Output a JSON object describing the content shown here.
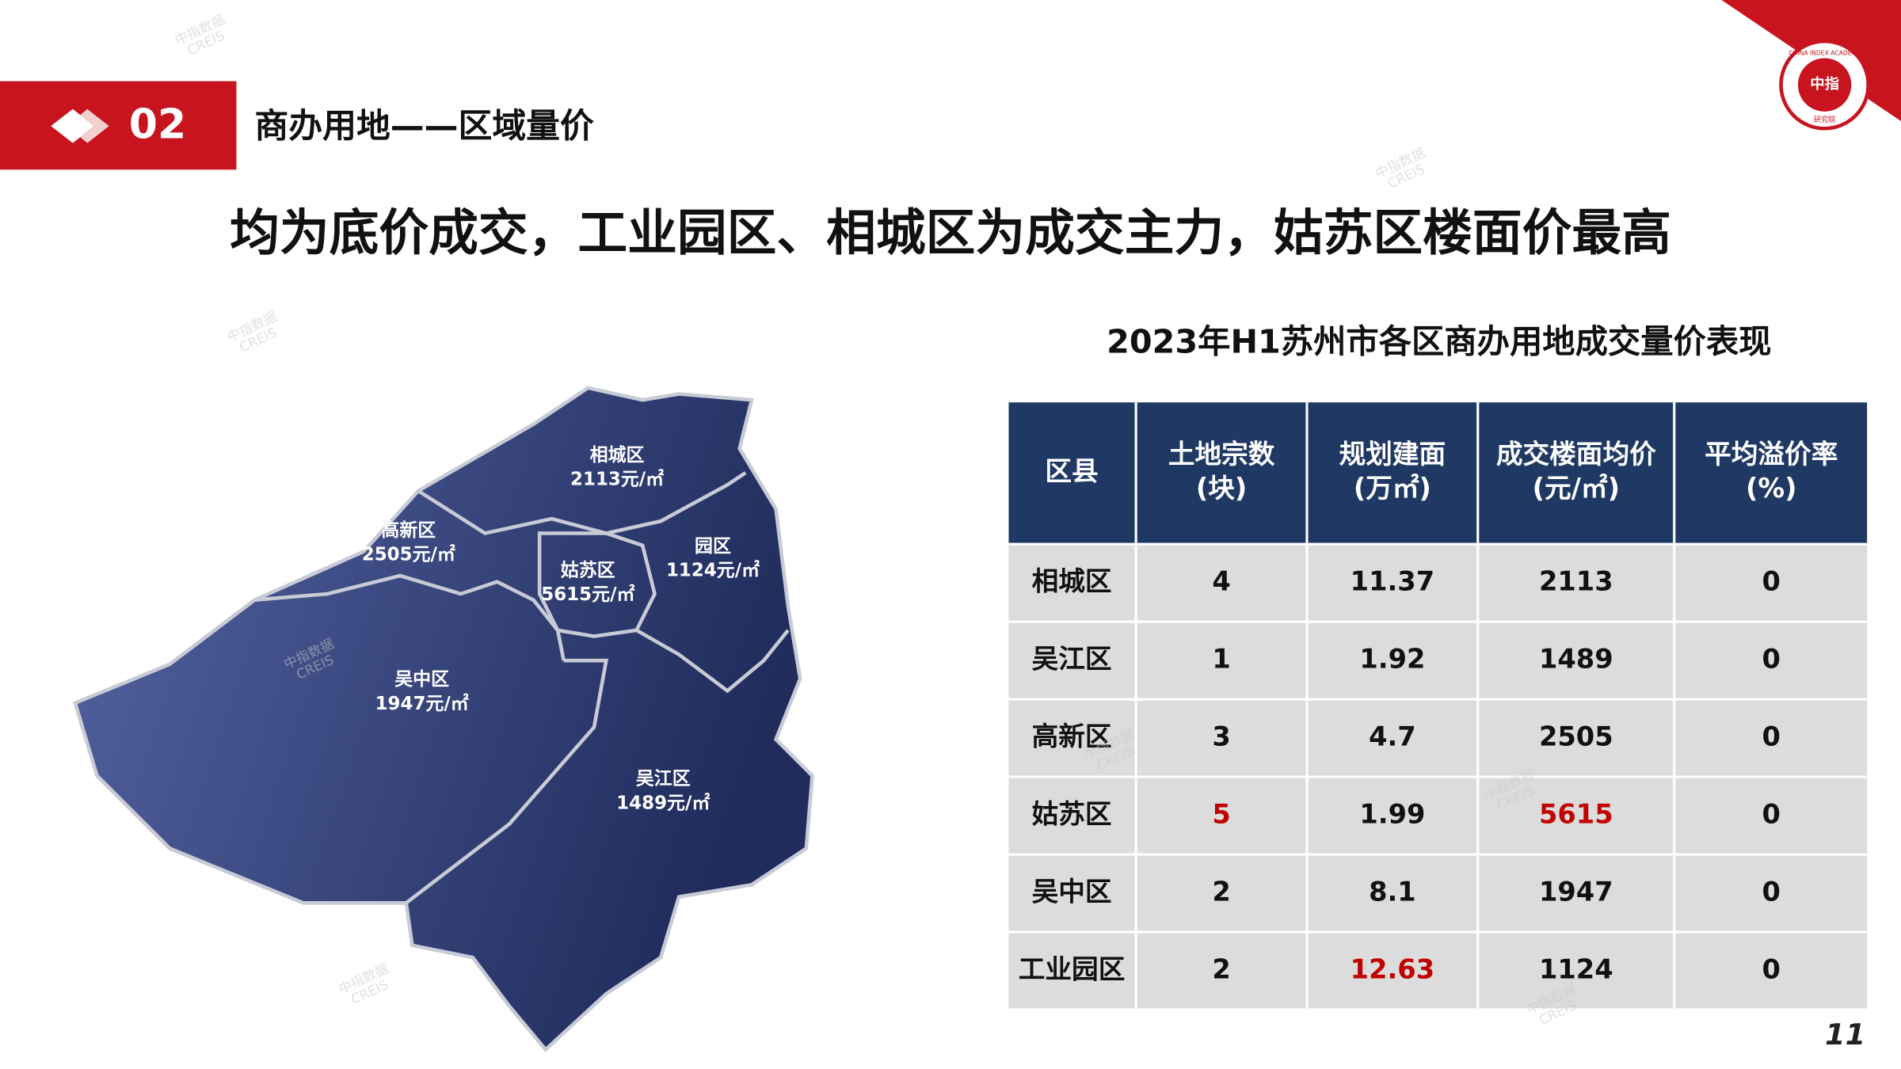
{
  "header": {
    "number": "02",
    "section": "商办用地——区域量价"
  },
  "headline": "均为底价成交，工业园区、相城区为成交主力，姑苏区楼面价最高",
  "logo": {
    "ring": "CHINA INDEX ACADEMY",
    "center": "中指",
    "bottom": "研究院"
  },
  "watermark": {
    "cn": "中指数据",
    "en": "CREIS"
  },
  "map": {
    "regions": [
      {
        "name": "相城区",
        "price": "2113元/㎡"
      },
      {
        "name": "高新区",
        "price": "2505元/㎡"
      },
      {
        "name": "姑苏区",
        "price": "5615元/㎡"
      },
      {
        "name": "园区",
        "price": "1124元/㎡"
      },
      {
        "name": "吴中区",
        "price": "1947元/㎡"
      },
      {
        "name": "吴江区",
        "price": "1489元/㎡"
      }
    ]
  },
  "table": {
    "title": "2023年H1苏州市各区商办用地成交量价表现",
    "header": [
      [
        "区县"
      ],
      [
        "土地宗数",
        "(块)"
      ],
      [
        "规划建面",
        "(万㎡)"
      ],
      [
        "成交楼面均价",
        "(元/㎡)"
      ],
      [
        "平均溢价率",
        "(%)"
      ]
    ],
    "rows": [
      [
        "相城区",
        "4",
        "11.37",
        "2113",
        "0"
      ],
      [
        "吴江区",
        "1",
        "1.92",
        "1489",
        "0"
      ],
      [
        "高新区",
        "3",
        "4.7",
        "2505",
        "0"
      ],
      [
        "姑苏区",
        "5",
        "1.99",
        "5615",
        "0"
      ],
      [
        "吴中区",
        "2",
        "8.1",
        "1947",
        "0"
      ],
      [
        "工业园区",
        "2",
        "12.63",
        "1124",
        "0"
      ]
    ],
    "highlight_color": "#c00000",
    "highlights": [
      [
        3,
        1
      ],
      [
        3,
        3
      ],
      [
        5,
        2
      ]
    ]
  },
  "page_number": "11"
}
